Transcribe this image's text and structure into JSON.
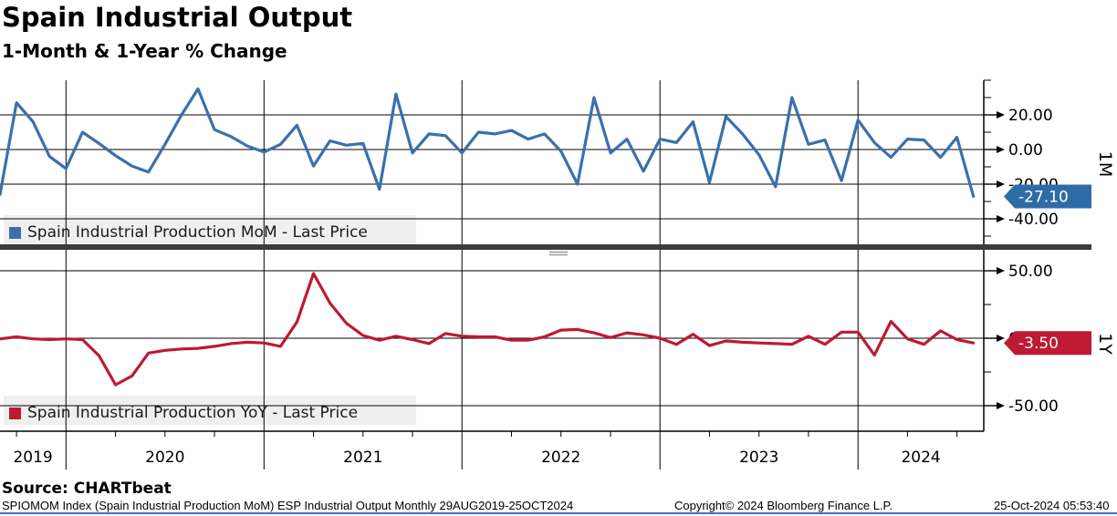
{
  "header": {
    "title": "Spain Industrial Output",
    "subtitle": "1-Month & 1-Year % Change"
  },
  "colors": {
    "mom_line": "#3a70ad",
    "mom_badge": "#2e6ca8",
    "yoy_line": "#bd1a33",
    "yoy_badge": "#bd1a33",
    "grid": "#000000",
    "legend_bg": "#efefef",
    "divider": "#3c3c3c",
    "handle": "#999999",
    "footer_rule": "#3e6dcc"
  },
  "x_axis": {
    "year_labels": [
      "2019",
      "2020",
      "2021",
      "2022",
      "2023",
      "2024"
    ]
  },
  "chart_data": [
    {
      "type": "line",
      "panel": "top",
      "name": "Spain Industrial Production MoM - Last Price",
      "axis_label": "1M",
      "start": "2019-09",
      "freq": "monthly",
      "ticks": [
        20,
        0,
        -20,
        -40
      ],
      "minor_ticks": [
        40,
        30,
        10,
        -10,
        -30,
        -50
      ],
      "last_price": "-27.10",
      "last_value": -27.1,
      "values": [
        -26.0,
        27.0,
        16.0,
        -4.0,
        -11.0,
        10.0,
        3.5,
        -3.5,
        -9.5,
        -13.0,
        3.0,
        20.0,
        35.0,
        11.5,
        7.5,
        2.0,
        -1.5,
        3.0,
        14.0,
        -9.5,
        5.0,
        2.5,
        3.5,
        -23.0,
        32.0,
        -2.0,
        9.0,
        8.0,
        -2.0,
        10.0,
        9.0,
        11.0,
        6.0,
        9.0,
        -1.0,
        -20.0,
        30.0,
        -2.0,
        6.0,
        -12.5,
        6.0,
        4.0,
        16.0,
        -19.0,
        19.0,
        9.0,
        -3.0,
        -21.5,
        30.0,
        3.0,
        5.5,
        -18.0,
        17.0,
        4.0,
        -4.5,
        6.0,
        5.5,
        -4.5,
        7.0,
        -27.1
      ]
    },
    {
      "type": "line",
      "panel": "bottom",
      "name": "Spain Industrial Production YoY - Last Price",
      "axis_label": "1Y",
      "start": "2019-09",
      "freq": "monthly",
      "ticks": [
        50,
        0,
        -50
      ],
      "minor_ticks": [
        25,
        -25
      ],
      "last_price": "-3.50",
      "last_value": -3.5,
      "values": [
        -0.5,
        1.0,
        -0.5,
        -1.0,
        -0.5,
        -1.0,
        -13.0,
        -34.5,
        -28.0,
        -11.0,
        -9.0,
        -8.0,
        -7.5,
        -6.0,
        -4.0,
        -3.0,
        -3.5,
        -6.0,
        12.0,
        48.0,
        26.0,
        11.0,
        2.0,
        -1.5,
        1.5,
        -1.0,
        -4.0,
        3.5,
        1.5,
        1.0,
        1.0,
        -1.5,
        -1.5,
        1.0,
        6.0,
        6.5,
        4.0,
        0.5,
        4.0,
        2.5,
        0.0,
        -4.5,
        3.0,
        -5.5,
        -2.0,
        -3.0,
        -3.5,
        -4.0,
        -4.5,
        1.5,
        -4.5,
        4.5,
        4.5,
        -12.5,
        12.5,
        -0.5,
        -4.5,
        5.5,
        -1.0,
        -3.5
      ]
    }
  ],
  "footer": {
    "source": "Source:  CHARTbeat",
    "description": "SPIOMOM Index (Spain Industrial Production MoM) ESP Industrial Output  Monthly 29AUG2019-25OCT2024",
    "copyright": "Copyright© 2024 Bloomberg Finance L.P.",
    "timestamp": "25-Oct-2024 05:53:40"
  }
}
